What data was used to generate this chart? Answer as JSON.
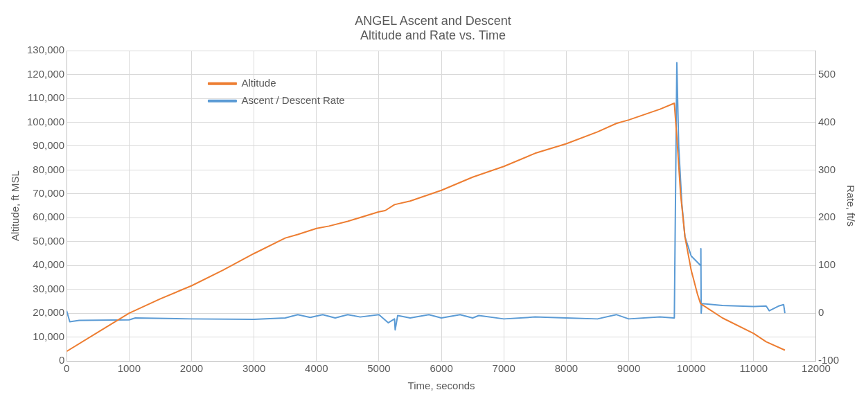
{
  "chart_data": {
    "type": "line",
    "title": "ANGEL Ascent and Descent",
    "subtitle": "Altitude and Rate vs. Time",
    "xlabel": "Time, seconds",
    "ylabel": "Altitude, ft MSL",
    "y2label": "Rate, ft/s",
    "xlim": [
      0,
      12000
    ],
    "xticks": [
      0,
      1000,
      2000,
      3000,
      4000,
      5000,
      6000,
      7000,
      8000,
      9000,
      10000,
      11000,
      12000
    ],
    "ylim": [
      0,
      130000
    ],
    "yticks": [
      {
        "value": 0,
        "label": "0"
      },
      {
        "value": 10000,
        "label": "10,000"
      },
      {
        "value": 20000,
        "label": "20,000"
      },
      {
        "value": 30000,
        "label": "30,000"
      },
      {
        "value": 40000,
        "label": "40,000"
      },
      {
        "value": 50000,
        "label": "50,000"
      },
      {
        "value": 60000,
        "label": "60,000"
      },
      {
        "value": 70000,
        "label": "70,000"
      },
      {
        "value": 80000,
        "label": "80,000"
      },
      {
        "value": 90000,
        "label": "90,000"
      },
      {
        "value": 100000,
        "label": "100,000"
      },
      {
        "value": 110000,
        "label": "110,000"
      },
      {
        "value": 120000,
        "label": "120,000"
      },
      {
        "value": 130000,
        "label": "130,000"
      }
    ],
    "y2lim": [
      -100,
      550
    ],
    "y2ticks": [
      -100,
      0,
      100,
      200,
      300,
      400,
      500
    ],
    "grid": true,
    "legend": "top left",
    "marker": "none",
    "line_style": "solid",
    "series": [
      {
        "name": "Altitude",
        "color": "#ed7d31",
        "x": [
          0,
          500,
          1000,
          1500,
          2000,
          2500,
          3000,
          3500,
          3700,
          4000,
          4200,
          4500,
          5000,
          5100,
          5250,
          5500,
          6000,
          6500,
          7000,
          7500,
          8000,
          8500,
          8800,
          9000,
          9500,
          9730,
          9780,
          9830,
          9900,
          10000,
          10100,
          10150,
          10500,
          11000,
          11200,
          11500
        ],
        "values": [
          4000,
          12000,
          20000,
          26000,
          31500,
          38000,
          45000,
          51500,
          53000,
          55500,
          56500,
          58500,
          62500,
          63000,
          65500,
          67000,
          71500,
          77000,
          81500,
          87000,
          91000,
          96000,
          99500,
          101000,
          105500,
          108000,
          90000,
          70000,
          52000,
          38000,
          28000,
          24000,
          18000,
          11500,
          8000,
          4500
        ]
      },
      {
        "name": "Ascent / Descent Rate",
        "color": "#5b9bd5",
        "axis": "y2",
        "x": [
          0,
          50,
          200,
          1000,
          1100,
          2000,
          3000,
          3500,
          3700,
          3900,
          4100,
          4300,
          4500,
          4700,
          5000,
          5150,
          5250,
          5260,
          5300,
          5500,
          5800,
          6000,
          6300,
          6500,
          6600,
          7000,
          7500,
          8000,
          8500,
          8800,
          9000,
          9500,
          9720,
          9730,
          9770,
          9800,
          9850,
          9900,
          10000,
          10150,
          10155,
          10160,
          10170,
          10500,
          11000,
          11200,
          11250,
          11400,
          11480,
          11500
        ],
        "values": [
          5,
          -18,
          -15,
          -14,
          -10,
          -12,
          -13,
          -10,
          -3,
          -9,
          -3,
          -10,
          -3,
          -8,
          -3,
          -20,
          -12,
          -35,
          -5,
          -10,
          -3,
          -10,
          -3,
          -10,
          -5,
          -12,
          -8,
          -10,
          -12,
          -3,
          -12,
          -8,
          -10,
          -10,
          525,
          350,
          230,
          160,
          120,
          100,
          135,
          0,
          20,
          16,
          14,
          15,
          5,
          15,
          18,
          0
        ]
      }
    ]
  }
}
